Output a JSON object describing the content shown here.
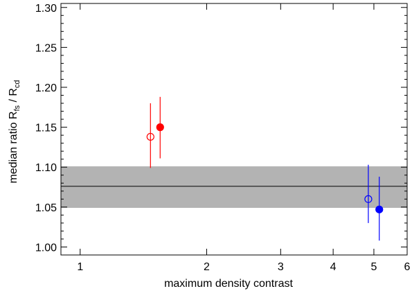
{
  "chart_data": {
    "type": "scatter",
    "title": "",
    "xlabel": "maximum density contrast",
    "ylabel": {
      "base": "median ratio R",
      "sub1": "fs",
      "mid": " / R",
      "sub2": "cd"
    },
    "xscale": "log",
    "xlim": [
      0.9,
      6
    ],
    "ylim": [
      0.99,
      1.305
    ],
    "xticks": [
      {
        "value": 1,
        "label": "1"
      },
      {
        "value": 2,
        "label": "2"
      },
      {
        "value": 3,
        "label": "3"
      },
      {
        "value": 4,
        "label": "4"
      },
      {
        "value": 5,
        "label": "5"
      },
      {
        "value": 6,
        "label": "6"
      }
    ],
    "yticks": [
      {
        "value": 1.0,
        "label": "1.00"
      },
      {
        "value": 1.05,
        "label": "1.05"
      },
      {
        "value": 1.1,
        "label": "1.10"
      },
      {
        "value": 1.15,
        "label": "1.15"
      },
      {
        "value": 1.2,
        "label": "1.20"
      },
      {
        "value": 1.25,
        "label": "1.25"
      },
      {
        "value": 1.3,
        "label": "1.30"
      }
    ],
    "band": {
      "ymin": 1.049,
      "ymax": 1.101,
      "color": "#b3b3b3"
    },
    "reference_line": {
      "y": 1.076,
      "color": "#000000"
    },
    "series": [
      {
        "color": "#ff0000",
        "points": [
          {
            "x": 1.47,
            "y": 1.138,
            "ylow": 1.099,
            "yhigh": 1.18,
            "filled": false
          },
          {
            "x": 1.55,
            "y": 1.15,
            "ylow": 1.111,
            "yhigh": 1.188,
            "filled": true
          }
        ]
      },
      {
        "color": "#0000ff",
        "points": [
          {
            "x": 4.85,
            "y": 1.06,
            "ylow": 1.03,
            "yhigh": 1.103,
            "filled": false
          },
          {
            "x": 5.15,
            "y": 1.047,
            "ylow": 1.008,
            "yhigh": 1.088,
            "filled": true
          }
        ]
      }
    ]
  }
}
